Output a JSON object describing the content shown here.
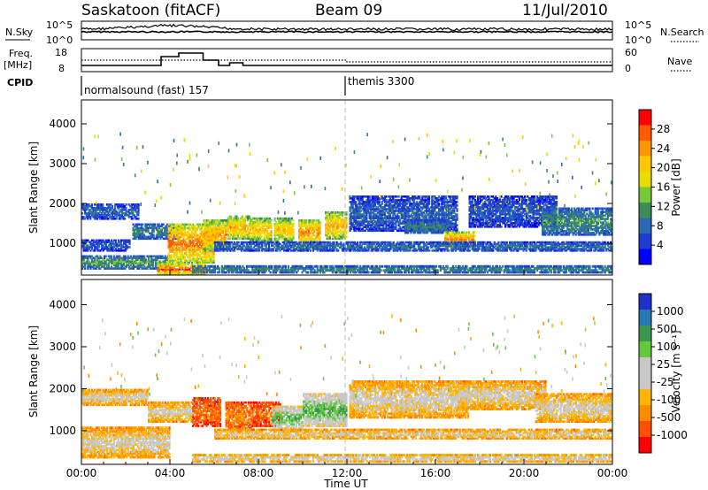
{
  "header": {
    "station": "Saskatoon (fitACF)",
    "beam": "Beam 09",
    "date": "11/Jul/2010"
  },
  "panel_labels": {
    "nsky": "N.Sky",
    "nsearch": "N.Search",
    "freq": "Freq.",
    "freq_unit": "[MHz]",
    "nave": "Nave",
    "cpid": "CPID"
  },
  "noise_axis": {
    "left_ticks": [
      "10^5",
      "10^0"
    ],
    "right_ticks": [
      "10^5",
      "10^0"
    ]
  },
  "freq_axis": {
    "left_ticks": [
      "18",
      "8"
    ],
    "right_ticks": [
      "60",
      "0"
    ]
  },
  "cpid_segments": [
    {
      "label": "normalsound (fast) 157",
      "start_hour": 0
    },
    {
      "label": "themis 3300",
      "start_hour": 12
    }
  ],
  "chart_data": [
    {
      "type": "heatmap",
      "name": "power",
      "xlabel": "",
      "ylabel": "Slant Range [km]",
      "xlim": [
        0,
        24
      ],
      "ylim": [
        200,
        4600
      ],
      "y_ticks": [
        1000,
        2000,
        3000,
        4000
      ],
      "colorbar": {
        "label": "Power [dB]",
        "ticks": [
          "28",
          "24",
          "20",
          "16",
          "12",
          "8",
          "4"
        ],
        "colors": [
          "#ff0000",
          "#ff5a00",
          "#ff9600",
          "#ffc800",
          "#e8dc00",
          "#78c83c",
          "#3c8c5a",
          "#2a6ab4",
          "#1e3cd2",
          "#0000ff"
        ]
      },
      "regions": [
        {
          "t0": 0.0,
          "t1": 2.6,
          "r0": 1600,
          "r1": 2000,
          "level": 0.28
        },
        {
          "t0": 0.0,
          "t1": 2.2,
          "r0": 800,
          "r1": 1100,
          "level": 0.25
        },
        {
          "t0": 0.0,
          "t1": 4.0,
          "r0": 350,
          "r1": 700,
          "level": 0.42
        },
        {
          "t0": 2.3,
          "t1": 4.4,
          "r0": 1100,
          "r1": 1500,
          "level": 0.35
        },
        {
          "t0": 3.9,
          "t1": 6.0,
          "r0": 500,
          "r1": 1500,
          "level": 0.85
        },
        {
          "t0": 3.4,
          "t1": 5.6,
          "r0": 200,
          "r1": 500,
          "level": 0.95
        },
        {
          "t0": 5.5,
          "t1": 6.6,
          "r0": 800,
          "r1": 1600,
          "level": 0.78
        },
        {
          "t0": 6.6,
          "t1": 7.6,
          "r0": 1100,
          "r1": 1700,
          "level": 0.75
        },
        {
          "t0": 7.6,
          "t1": 8.6,
          "r0": 1050,
          "r1": 1650,
          "level": 0.72
        },
        {
          "t0": 8.7,
          "t1": 9.6,
          "r0": 1050,
          "r1": 1650,
          "level": 0.7
        },
        {
          "t0": 9.8,
          "t1": 10.8,
          "r0": 950,
          "r1": 1600,
          "level": 0.82
        },
        {
          "t0": 11.0,
          "t1": 12.0,
          "r0": 1100,
          "r1": 1800,
          "level": 0.75
        },
        {
          "t0": 12.1,
          "t1": 17.0,
          "r0": 1300,
          "r1": 2200,
          "level": 0.25
        },
        {
          "t0": 14.6,
          "t1": 16.6,
          "r0": 1250,
          "r1": 1600,
          "level": 0.35
        },
        {
          "t0": 16.4,
          "t1": 17.8,
          "r0": 900,
          "r1": 1300,
          "level": 0.85
        },
        {
          "t0": 17.5,
          "t1": 21.5,
          "r0": 1400,
          "r1": 2200,
          "level": 0.22
        },
        {
          "t0": 20.8,
          "t1": 24.0,
          "r0": 1200,
          "r1": 1900,
          "level": 0.38
        },
        {
          "t0": 6.0,
          "t1": 24.0,
          "r0": 800,
          "r1": 1050,
          "level": 0.3
        },
        {
          "t0": 5.0,
          "t1": 24.0,
          "r0": 250,
          "r1": 450,
          "level": 0.4
        }
      ]
    },
    {
      "type": "heatmap",
      "name": "velocity",
      "xlabel": "Time UT",
      "ylabel": "Slant Range [km]",
      "xlim": [
        0,
        24
      ],
      "ylim": [
        200,
        4600
      ],
      "x_ticks": [
        "00:00",
        "04:00",
        "08:00",
        "12:00",
        "16:00",
        "20:00",
        "00:00"
      ],
      "y_ticks": [
        1000,
        2000,
        3000,
        4000
      ],
      "colorbar": {
        "label": "Velocity [m s⁻¹]",
        "ticks": [
          "1000",
          "500",
          "100",
          "25",
          "-25",
          "-100",
          "-500",
          "-1000"
        ],
        "colors": [
          "#1e32c8",
          "#2878b4",
          "#3c9650",
          "#64c83c",
          "#c8c8c8",
          "#c8c8c8",
          "#ffb400",
          "#ff8c00",
          "#ff5000",
          "#ff0000"
        ]
      },
      "regions": [
        {
          "t0": 0.0,
          "t1": 3.0,
          "r0": 1600,
          "r1": 2000,
          "level": 0.5
        },
        {
          "t0": 0.0,
          "t1": 4.0,
          "r0": 350,
          "r1": 1100,
          "level": 0.5
        },
        {
          "t0": 3.0,
          "t1": 5.0,
          "r0": 1200,
          "r1": 1700,
          "level": 0.5
        },
        {
          "t0": 5.0,
          "t1": 6.3,
          "r0": 1100,
          "r1": 1800,
          "level": 0.22
        },
        {
          "t0": 6.5,
          "t1": 7.7,
          "r0": 1000,
          "r1": 1700,
          "level": 0.25
        },
        {
          "t0": 7.7,
          "t1": 9.0,
          "r0": 1100,
          "r1": 1700,
          "level": 0.2
        },
        {
          "t0": 8.6,
          "t1": 10.0,
          "r0": 1000,
          "r1": 1600,
          "level": 0.74
        },
        {
          "t0": 10.0,
          "t1": 12.0,
          "r0": 1100,
          "r1": 1900,
          "level": 0.76
        },
        {
          "t0": 12.1,
          "t1": 17.5,
          "r0": 1300,
          "r1": 2200,
          "level": 0.5
        },
        {
          "t0": 17.0,
          "t1": 21.0,
          "r0": 1500,
          "r1": 2200,
          "level": 0.5
        },
        {
          "t0": 20.5,
          "t1": 24.0,
          "r0": 1200,
          "r1": 1900,
          "level": 0.5
        },
        {
          "t0": 6.0,
          "t1": 24.0,
          "r0": 800,
          "r1": 1050,
          "level": 0.5
        },
        {
          "t0": 5.0,
          "t1": 24.0,
          "r0": 250,
          "r1": 450,
          "level": 0.58
        }
      ]
    }
  ]
}
